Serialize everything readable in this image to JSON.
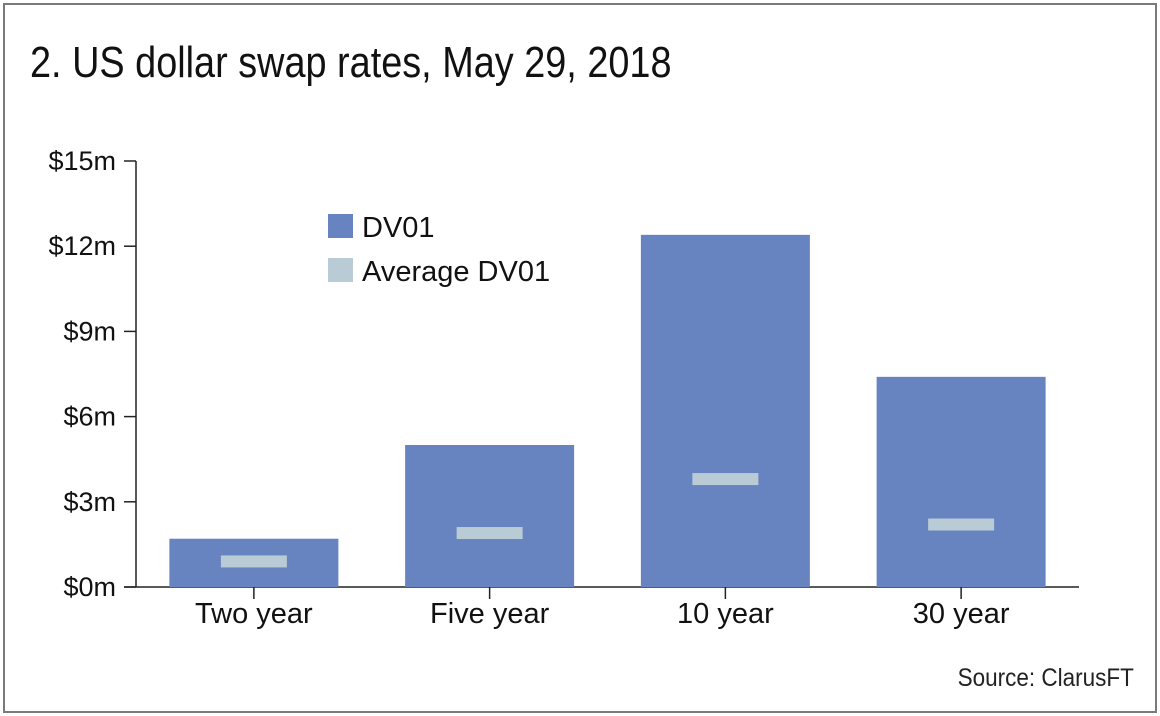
{
  "chart_data": {
    "type": "bar",
    "title": "2. US dollar swap rates, May 29, 2018",
    "source": "Source: ClarusFT",
    "categories": [
      "Two year",
      "Five year",
      "10 year",
      "30 year"
    ],
    "series": [
      {
        "name": "DV01",
        "values": [
          1.7,
          5.0,
          12.4,
          7.4
        ],
        "color": "#6783c0"
      },
      {
        "name": "Average DV01",
        "values": [
          0.9,
          1.9,
          3.8,
          2.2
        ],
        "color": "#b9ccd6"
      }
    ],
    "yticks": [
      0,
      3,
      6,
      9,
      12,
      15
    ],
    "ytick_labels": [
      "$0m",
      "$3m",
      "$6m",
      "$9m",
      "$12m",
      "$15m"
    ],
    "ylim": [
      0,
      15
    ],
    "xlabel": "",
    "ylabel": "",
    "legend_position": "top-left",
    "grid": false
  }
}
